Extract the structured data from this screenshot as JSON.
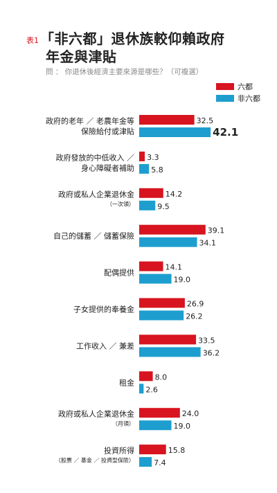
{
  "header": {
    "tag": "表1",
    "title_line1": "「非六都」退休族較仰賴政府",
    "title_line2": "年金與津貼",
    "subtitle": "問 ： 你退休後經濟主要來源是哪些？（可複選）"
  },
  "chart_data": {
    "type": "bar",
    "orientation": "horizontal",
    "title": "「非六都」退休族較仰賴政府年金與津貼",
    "subtitle": "問 ： 你退休後經濟主要來源是哪些？（可複選）",
    "legend_position": "top-right",
    "grid": false,
    "colors": {
      "六都": "#d7141f",
      "非六都": "#1e9ecf"
    },
    "categories": [
      {
        "lines": [
          "政府的老年 ／ 老農年金等",
          "保險給付或津貼"
        ],
        "note": ""
      },
      {
        "lines": [
          "政府發放的中低收入 ／",
          "身心障礙者補助"
        ],
        "note": ""
      },
      {
        "lines": [
          "政府或私人企業退休金"
        ],
        "note": "（一次領）"
      },
      {
        "lines": [
          "自己的儲蓄 ／ 儲蓄保險"
        ],
        "note": ""
      },
      {
        "lines": [
          "配偶提供"
        ],
        "note": ""
      },
      {
        "lines": [
          "子女提供的奉養金"
        ],
        "note": ""
      },
      {
        "lines": [
          "工作收入 ／ 兼差"
        ],
        "note": ""
      },
      {
        "lines": [
          "租金"
        ],
        "note": ""
      },
      {
        "lines": [
          "政府或私人企業退休金"
        ],
        "note": "（月領）"
      },
      {
        "lines": [
          "投資所得"
        ],
        "note": "（股票 ／ 基金 ／ 投資型保險）"
      }
    ],
    "series": [
      {
        "name": "六都",
        "values": [
          32.5,
          3.3,
          14.2,
          39.1,
          14.1,
          26.9,
          33.5,
          8.0,
          24.0,
          15.8
        ]
      },
      {
        "name": "非六都",
        "values": [
          42.1,
          5.8,
          9.5,
          34.1,
          19.0,
          26.2,
          36.2,
          2.6,
          19.0,
          7.4
        ]
      }
    ],
    "highlight": {
      "series": 1,
      "index": 0,
      "color": "#1e9ecf"
    }
  }
}
